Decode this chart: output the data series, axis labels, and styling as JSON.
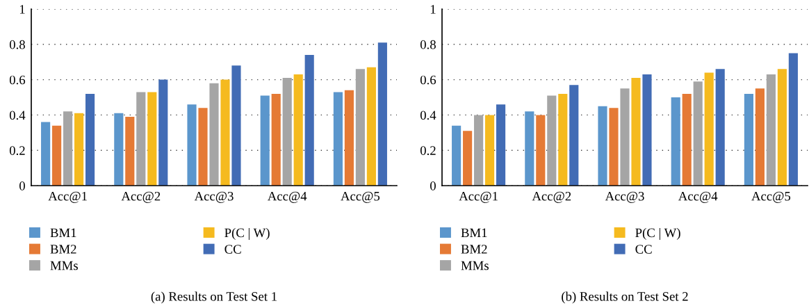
{
  "chart_data": [
    {
      "type": "bar",
      "categories": [
        "Acc@1",
        "Acc@2",
        "Acc@3",
        "Acc@4",
        "Acc@5"
      ],
      "series": [
        {
          "name": "BM1",
          "color": "#5b96cc",
          "values": [
            0.36,
            0.41,
            0.46,
            0.51,
            0.53
          ]
        },
        {
          "name": "BM2",
          "color": "#e57a35",
          "values": [
            0.34,
            0.39,
            0.44,
            0.52,
            0.54
          ]
        },
        {
          "name": "MMs",
          "color": "#a5a5a5",
          "values": [
            0.42,
            0.53,
            0.58,
            0.61,
            0.66
          ]
        },
        {
          "name": "P(C | W)",
          "color": "#f5ba1f",
          "values": [
            0.41,
            0.53,
            0.6,
            0.63,
            0.67
          ]
        },
        {
          "name": "CC",
          "color": "#426cb5",
          "values": [
            0.52,
            0.6,
            0.68,
            0.74,
            0.81
          ]
        }
      ],
      "ylim": [
        0,
        1
      ],
      "yticks": [
        0,
        0.2,
        0.4,
        0.6,
        0.8,
        1
      ],
      "grid": "y",
      "legend": "bottom",
      "annotations": [
        "(a) Results on Test Set 1"
      ]
    },
    {
      "type": "bar",
      "categories": [
        "Acc@1",
        "Acc@2",
        "Acc@3",
        "Acc@4",
        "Acc@5"
      ],
      "series": [
        {
          "name": "BM1",
          "color": "#5b96cc",
          "values": [
            0.34,
            0.42,
            0.45,
            0.5,
            0.52
          ]
        },
        {
          "name": "BM2",
          "color": "#e57a35",
          "values": [
            0.31,
            0.4,
            0.44,
            0.52,
            0.55
          ]
        },
        {
          "name": "MMs",
          "color": "#a5a5a5",
          "values": [
            0.4,
            0.51,
            0.55,
            0.59,
            0.63
          ]
        },
        {
          "name": "P(C | W)",
          "color": "#f5ba1f",
          "values": [
            0.4,
            0.52,
            0.61,
            0.64,
            0.66
          ]
        },
        {
          "name": "CC",
          "color": "#426cb5",
          "values": [
            0.46,
            0.57,
            0.63,
            0.66,
            0.75
          ]
        }
      ],
      "ylim": [
        0,
        1
      ],
      "yticks": [
        0,
        0.2,
        0.4,
        0.6,
        0.8,
        1
      ],
      "grid": "y",
      "legend": "bottom",
      "annotations": [
        "(b) Results on Test Set 2"
      ]
    }
  ]
}
